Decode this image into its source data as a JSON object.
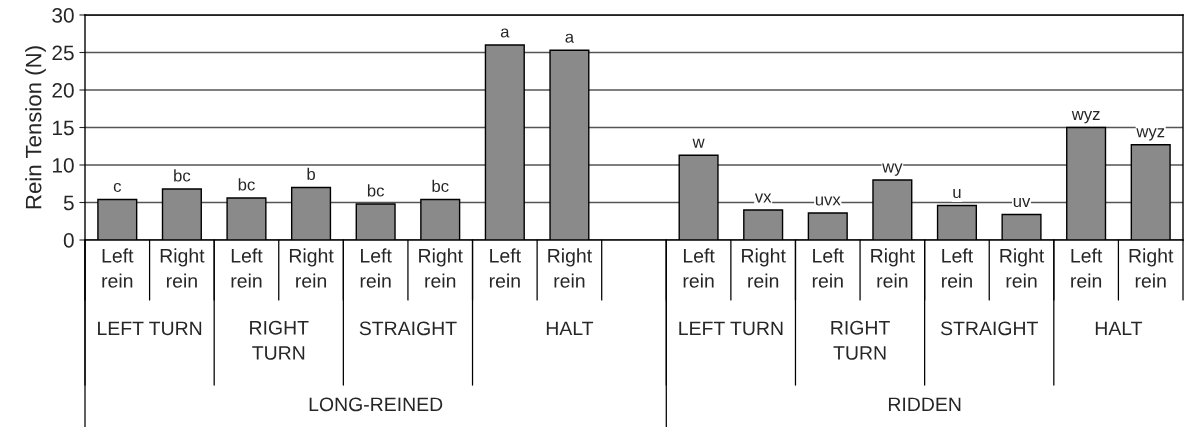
{
  "chart_data": {
    "type": "bar",
    "ylabel": "Rein Tension (N)",
    "categories": [
      "Left rein",
      "Right rein",
      "Left rein",
      "Right rein",
      "Left rein",
      "Right rein",
      "Left rein",
      "Right rein",
      null,
      "Left rein",
      "Right rein",
      "Left rein",
      "Right rein",
      "Left rein",
      "Right rein",
      "Left rein",
      "Right rein"
    ],
    "values": [
      5.4,
      6.8,
      5.6,
      7.0,
      4.8,
      5.4,
      26.0,
      25.3,
      null,
      11.3,
      4.0,
      3.6,
      8.0,
      4.6,
      3.4,
      15.0,
      12.7
    ],
    "value_labels": [
      "c",
      "bc",
      "bc",
      "b",
      "bc",
      "bc",
      "a",
      "a",
      null,
      "w",
      "vx",
      "uvx",
      "wy",
      "u",
      "uv",
      "wyz",
      "wyz"
    ],
    "color": "#8a8a8a",
    "ylim": [
      0,
      30
    ],
    "yticks": [
      0,
      5,
      10,
      15,
      20,
      25,
      30
    ],
    "grid": "y",
    "legend": false,
    "annotations": [
      "LEFT TURN",
      "RIGHT TURN",
      "STRAIGHT",
      "HALT",
      "LEFT TURN",
      "RIGHT TURN",
      "STRAIGHT",
      "HALT",
      "LONG-REINED",
      "RIDDEN"
    ]
  }
}
